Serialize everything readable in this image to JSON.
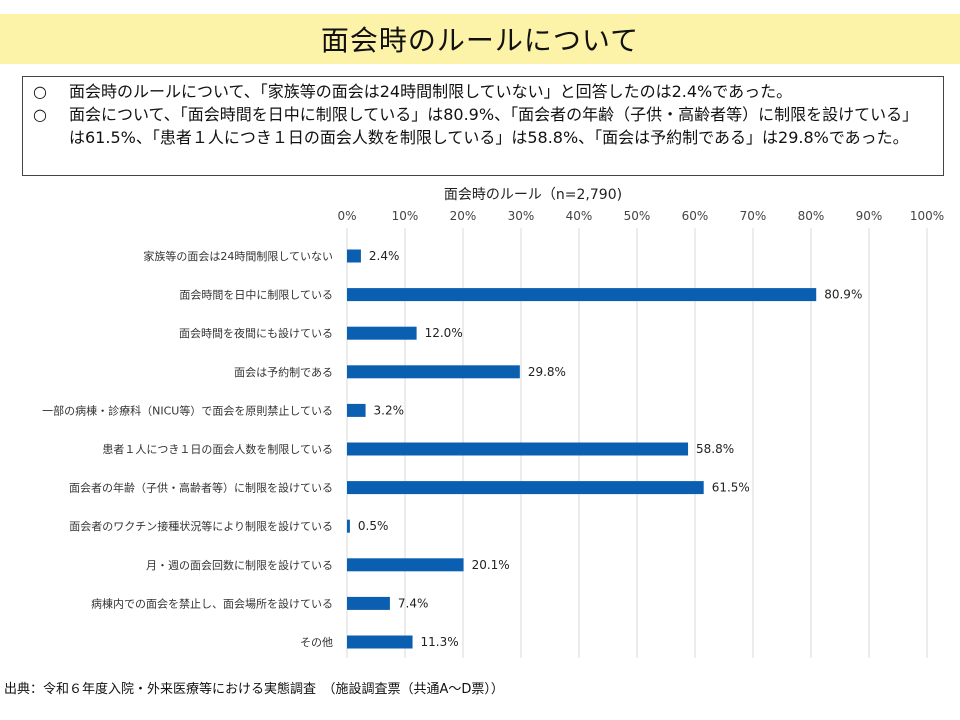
{
  "slide": {
    "title": "面会時のルールについて",
    "source": "出典：令和６年度入院・外来医療等における実態調査　（施設調査票（共通A～D票））"
  },
  "summary": [
    {
      "mark": "○",
      "text": "面会時のルールについて、「家族等の面会は24時間制限していない」と回答したのは2.4%であった。"
    },
    {
      "mark": "○",
      "text": "面会について、「面会時間を日中に制限している」は80.9%、「面会者の年齢（子供・高齢者等）に制限を設けている」は61.5%、「患者１人につき１日の面会人数を制限している」は58.8%、「面会は予約制である」は29.8%であった。"
    }
  ],
  "chart_data": {
    "type": "bar",
    "orientation": "horizontal",
    "title": "面会時のルール（n=2,790)",
    "categories": [
      "家族等の面会は24時間制限していない",
      "面会時間を日中に制限している",
      "面会時間を夜間にも設けている",
      "面会は予約制である",
      "一部の病棟・診療科（NICU等）で面会を原則禁止している",
      "患者１人につき１日の面会人数を制限している",
      "面会者の年齢（子供・高齢者等）に制限を設けている",
      "面会者のワクチン接種状況等により制限を設けている",
      "月・週の面会回数に制限を設けている",
      "病棟内での面会を禁止し、面会場所を設けている",
      "その他"
    ],
    "values": [
      2.4,
      80.9,
      12.0,
      29.8,
      3.2,
      58.8,
      61.5,
      0.5,
      20.1,
      7.4,
      11.3
    ],
    "value_labels": [
      "2.4%",
      "80.9%",
      "12.0%",
      "29.8%",
      "3.2%",
      "58.8%",
      "61.5%",
      "0.5%",
      "20.1%",
      "7.4%",
      "11.3%"
    ],
    "xlim": [
      0,
      100
    ],
    "ticks": [
      0,
      10,
      20,
      30,
      40,
      50,
      60,
      70,
      80,
      90,
      100
    ],
    "tick_labels": [
      "0%",
      "10%",
      "20%",
      "30%",
      "40%",
      "50%",
      "60%",
      "70%",
      "80%",
      "90%",
      "100%"
    ],
    "xaxis_position": "top",
    "grid": true,
    "legend": false,
    "bar_color": "#0b5fb0",
    "grid_color": "#d9d9d9"
  }
}
